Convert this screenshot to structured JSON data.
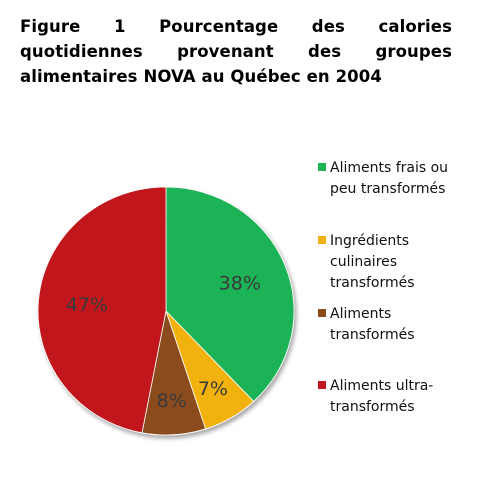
{
  "title": "Figure 1 Pourcentage des calories quotidiennes provenant des groupes alimentaires NOVA au Québec en 2004",
  "chart_data": {
    "type": "pie",
    "slices": [
      {
        "label": "Aliments frais ou peu transformés",
        "value": 38,
        "value_label": "38%",
        "color": "#1fb356"
      },
      {
        "label": "Ingrédients culinaires transformés",
        "value": 7,
        "value_label": "7%",
        "color": "#f2b20f"
      },
      {
        "label": "Aliments transformés",
        "value": 8,
        "value_label": "8%",
        "color": "#8b4c1c"
      },
      {
        "label": "Aliments ultra-transformés",
        "value": 47,
        "value_label": "47%",
        "color": "#c0151a"
      }
    ],
    "legend_position": "right"
  }
}
